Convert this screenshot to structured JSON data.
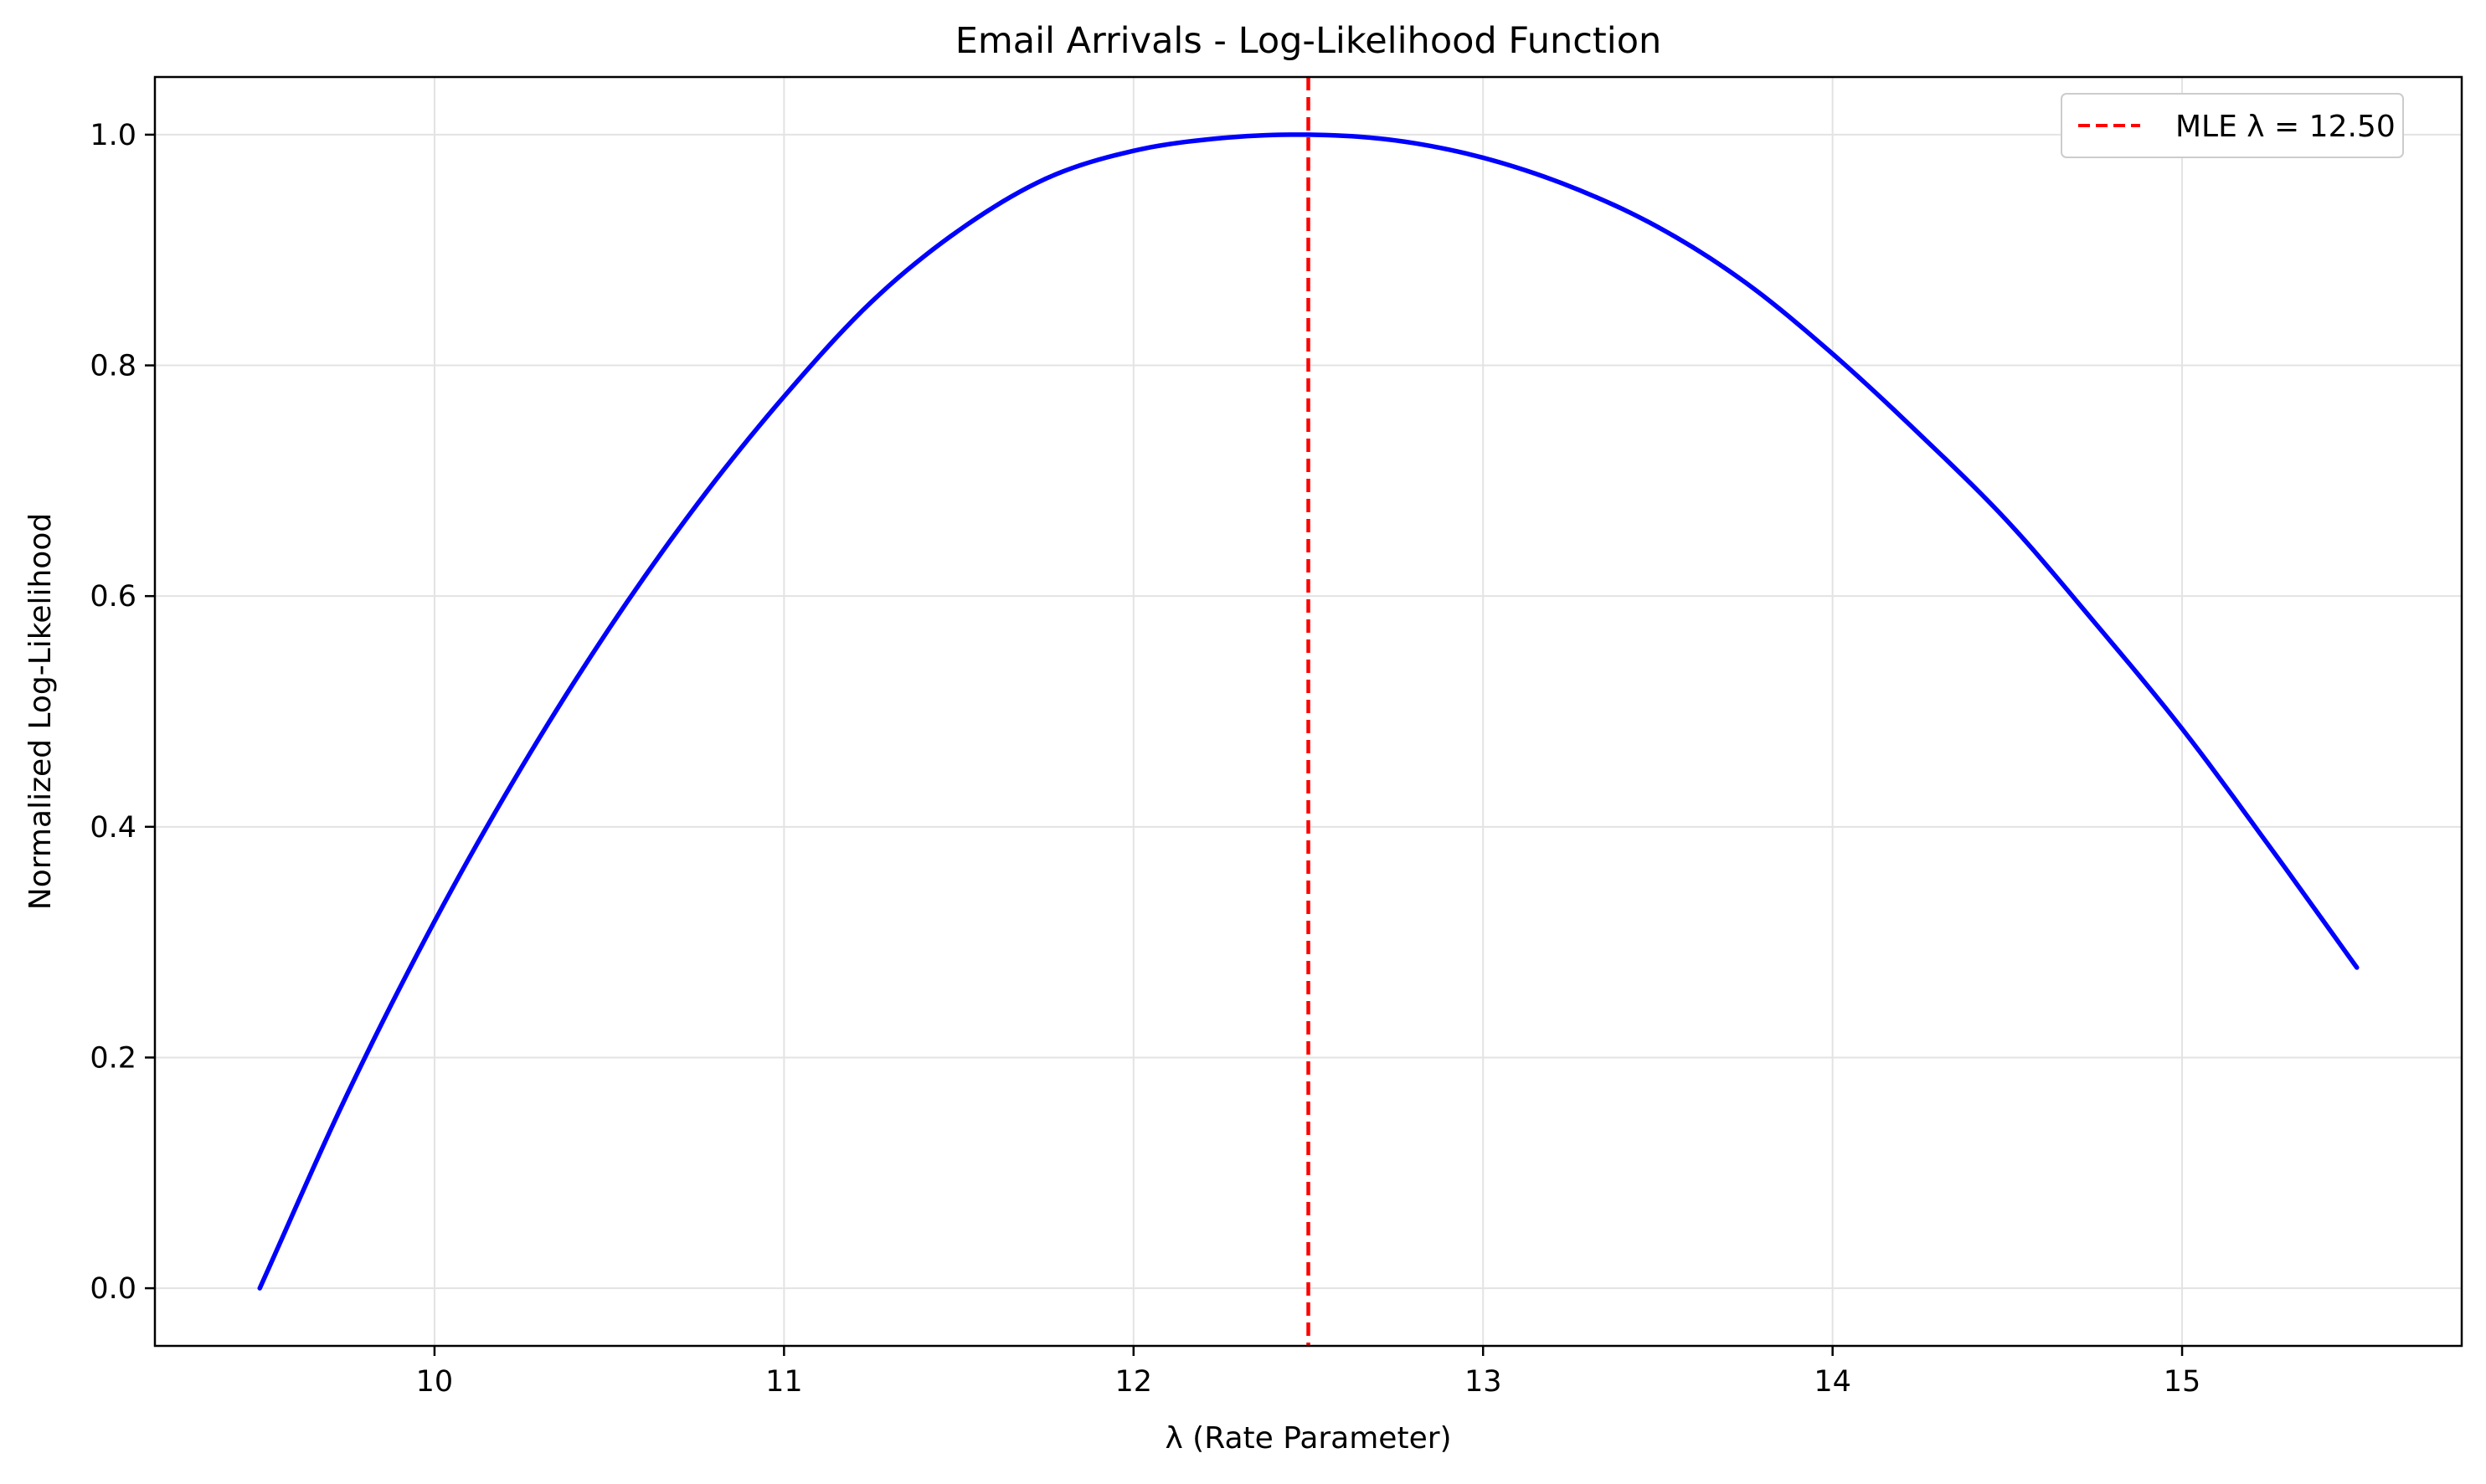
{
  "chart_data": {
    "type": "line",
    "title": "Email Arrivals - Log-Likelihood Function",
    "xlabel": "λ (Rate Parameter)",
    "ylabel": "Normalized Log-Likelihood",
    "xlim": [
      9.2,
      15.8
    ],
    "ylim": [
      -0.05,
      1.05
    ],
    "xticks": [
      10,
      11,
      12,
      13,
      14,
      15
    ],
    "xtick_labels": [
      "10",
      "11",
      "12",
      "13",
      "14",
      "15"
    ],
    "yticks": [
      0.0,
      0.2,
      0.4,
      0.6,
      0.8,
      1.0
    ],
    "ytick_labels": [
      "0.0",
      "0.2",
      "0.4",
      "0.6",
      "0.8",
      "1.0"
    ],
    "grid": true,
    "legend_position": "top-right",
    "series": [
      {
        "name": "",
        "kind": "curve",
        "color": "#0000ff",
        "x": [
          9.5,
          9.75,
          10.0,
          10.25,
          10.5,
          10.75,
          11.0,
          11.25,
          11.5,
          11.75,
          12.0,
          12.25,
          12.5,
          12.75,
          13.0,
          13.25,
          13.5,
          13.75,
          14.0,
          14.25,
          14.5,
          14.75,
          15.0,
          15.25,
          15.5
        ],
        "y": [
          0.0,
          0.168,
          0.318,
          0.452,
          0.572,
          0.679,
          0.773,
          0.855,
          0.917,
          0.962,
          0.986,
          0.997,
          1.0,
          0.995,
          0.98,
          0.955,
          0.92,
          0.872,
          0.81,
          0.74,
          0.665,
          0.577,
          0.485,
          0.383,
          0.278
        ]
      },
      {
        "name": "MLE λ = 12.50",
        "kind": "vline",
        "x": 12.5,
        "color": "#ff0000",
        "style": "dashed"
      }
    ]
  }
}
